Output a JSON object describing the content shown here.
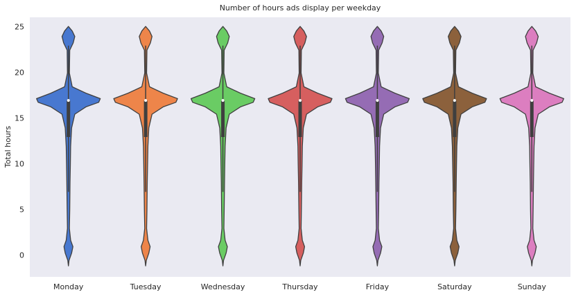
{
  "chart_data": {
    "type": "violin",
    "title": "Number of hours ads display per weekday",
    "ylabel": "Total hours",
    "categories": [
      "Monday",
      "Tuesday",
      "Wednesday",
      "Thursday",
      "Friday",
      "Saturday",
      "Sunday"
    ],
    "colors": [
      "#4878d0",
      "#ee854a",
      "#6acc64",
      "#d65f5f",
      "#956cb4",
      "#8c613c",
      "#dc7ec0"
    ],
    "density_y": [
      -1.1,
      -0.5,
      0.3,
      1,
      1.7,
      3,
      5,
      8,
      10,
      12,
      14,
      15.5,
      16.3,
      16.8,
      17.2,
      17.8,
      18.5,
      20,
      22.5,
      23.3,
      24,
      24.6,
      25.1
    ],
    "density": [
      [
        0,
        0.02,
        0.1,
        0.14,
        0.07,
        0.03,
        0.04,
        0.05,
        0.06,
        0.07,
        0.1,
        0.2,
        0.55,
        0.95,
        1,
        0.55,
        0.12,
        0.03,
        0.04,
        0.15,
        0.2,
        0.12,
        0
      ],
      [
        0,
        0.02,
        0.1,
        0.14,
        0.07,
        0.03,
        0.04,
        0.05,
        0.06,
        0.07,
        0.1,
        0.2,
        0.55,
        0.95,
        1,
        0.55,
        0.12,
        0.03,
        0.04,
        0.15,
        0.2,
        0.12,
        0
      ],
      [
        0,
        0.02,
        0.1,
        0.14,
        0.07,
        0.03,
        0.04,
        0.05,
        0.06,
        0.07,
        0.1,
        0.2,
        0.55,
        0.95,
        1,
        0.55,
        0.12,
        0.03,
        0.04,
        0.15,
        0.2,
        0.12,
        0
      ],
      [
        0,
        0.02,
        0.1,
        0.14,
        0.07,
        0.03,
        0.04,
        0.05,
        0.06,
        0.07,
        0.1,
        0.2,
        0.55,
        0.95,
        1,
        0.55,
        0.12,
        0.03,
        0.04,
        0.15,
        0.2,
        0.12,
        0
      ],
      [
        0,
        0.02,
        0.1,
        0.14,
        0.07,
        0.03,
        0.04,
        0.05,
        0.06,
        0.07,
        0.1,
        0.2,
        0.55,
        0.95,
        1,
        0.55,
        0.12,
        0.03,
        0.04,
        0.15,
        0.2,
        0.12,
        0
      ],
      [
        0,
        0.02,
        0.1,
        0.14,
        0.07,
        0.03,
        0.04,
        0.05,
        0.06,
        0.07,
        0.1,
        0.2,
        0.55,
        0.95,
        1,
        0.55,
        0.12,
        0.03,
        0.04,
        0.15,
        0.2,
        0.12,
        0
      ],
      [
        0,
        0.02,
        0.1,
        0.14,
        0.07,
        0.03,
        0.04,
        0.05,
        0.06,
        0.07,
        0.1,
        0.2,
        0.55,
        0.95,
        1,
        0.55,
        0.12,
        0.03,
        0.04,
        0.15,
        0.2,
        0.12,
        0
      ]
    ],
    "whisker_low": [
      7,
      7,
      7,
      7,
      7,
      7,
      7
    ],
    "q1": [
      13,
      13,
      13,
      13,
      13,
      13,
      13
    ],
    "median": [
      17,
      17,
      17,
      17,
      17,
      17,
      17
    ],
    "q3": [
      17,
      17,
      17,
      17,
      17,
      17,
      17
    ],
    "whisker_high": [
      23,
      23,
      23,
      23,
      23,
      23,
      23
    ],
    "ylim": [
      -2.3,
      26.1
    ],
    "yticks": [
      0,
      5,
      10,
      15,
      20,
      25
    ],
    "grid": false
  }
}
